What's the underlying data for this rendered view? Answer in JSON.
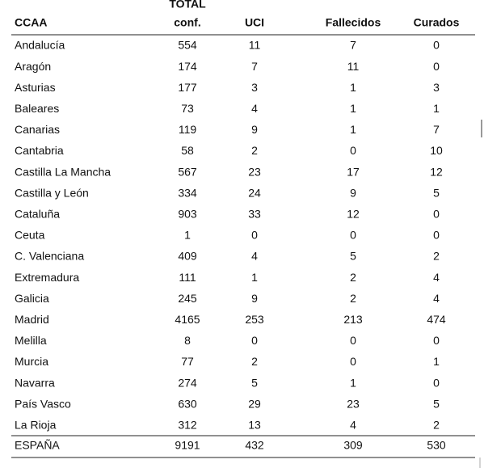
{
  "table": {
    "column_top": "TOTAL",
    "columns": [
      "CCAA",
      "conf.",
      "UCI",
      "Fallecidos",
      "Curados"
    ],
    "rows": [
      [
        "Andalucía",
        554,
        11,
        7,
        0
      ],
      [
        "Aragón",
        174,
        7,
        11,
        0
      ],
      [
        "Asturias",
        177,
        3,
        1,
        3
      ],
      [
        "Baleares",
        73,
        4,
        1,
        1
      ],
      [
        "Canarias",
        119,
        9,
        1,
        7
      ],
      [
        "Cantabria",
        58,
        2,
        0,
        10
      ],
      [
        "Castilla La Mancha",
        567,
        23,
        17,
        12
      ],
      [
        "Castilla y León",
        334,
        24,
        9,
        5
      ],
      [
        "Cataluña",
        903,
        33,
        12,
        0
      ],
      [
        "Ceuta",
        1,
        0,
        0,
        0
      ],
      [
        "C. Valenciana",
        409,
        4,
        5,
        2
      ],
      [
        "Extremadura",
        111,
        1,
        2,
        4
      ],
      [
        "Galicia",
        245,
        9,
        2,
        4
      ],
      [
        "Madrid",
        4165,
        253,
        213,
        474
      ],
      [
        "Melilla",
        8,
        0,
        0,
        0
      ],
      [
        "Murcia",
        77,
        2,
        0,
        1
      ],
      [
        "Navarra",
        274,
        5,
        1,
        0
      ],
      [
        "País Vasco",
        630,
        29,
        23,
        5
      ],
      [
        "La Rioja",
        312,
        13,
        4,
        2
      ]
    ],
    "total": [
      "ESPAÑA",
      9191,
      432,
      309,
      530
    ]
  }
}
